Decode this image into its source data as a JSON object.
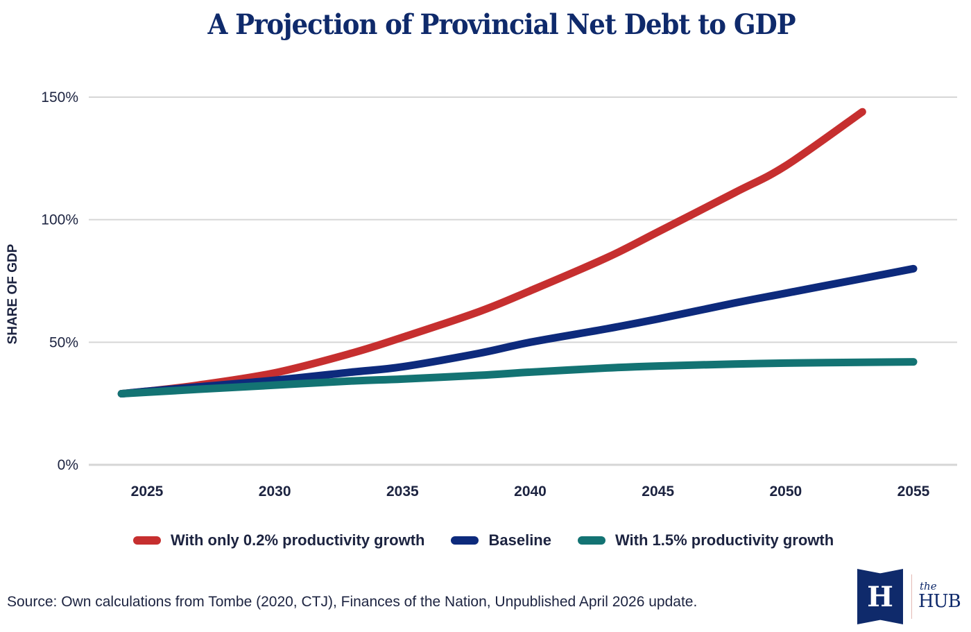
{
  "chart_data": {
    "type": "line",
    "title": "A Projection of Provincial Net Debt to GDP",
    "xlabel": "",
    "ylabel": "SHARE OF GDP",
    "ylim": [
      0,
      150
    ],
    "xlim": [
      2024,
      2055
    ],
    "yticks": [
      0,
      50,
      100,
      150
    ],
    "ytick_labels": [
      "0%",
      "50%",
      "100%",
      "150%"
    ],
    "xticks": [
      2025,
      2030,
      2035,
      2040,
      2045,
      2050,
      2055
    ],
    "xtick_labels": [
      "2025",
      "2030",
      "2035",
      "2040",
      "2045",
      "2050",
      "2055"
    ],
    "grid": "horizontal",
    "legend_position": "bottom",
    "series": [
      {
        "name": "With only 0.2% productivity growth",
        "color": "#c62f2f",
        "x": [
          2024,
          2025,
          2027,
          2030,
          2033,
          2035,
          2038,
          2040,
          2043,
          2045,
          2048,
          2050,
          2053
        ],
        "values": [
          29,
          30,
          32.5,
          37.5,
          45.5,
          52,
          62.5,
          71,
          84.5,
          95,
          111,
          122,
          144
        ]
      },
      {
        "name": "Baseline",
        "color": "#0d2a7c",
        "x": [
          2024,
          2025,
          2027,
          2030,
          2033,
          2035,
          2038,
          2040,
          2043,
          2045,
          2048,
          2050,
          2053,
          2055
        ],
        "values": [
          29,
          30,
          31.8,
          34.5,
          37.8,
          40,
          45.5,
          50,
          55.5,
          59.5,
          66,
          70,
          76,
          80
        ]
      },
      {
        "name": "With 1.5% productivity growth",
        "color": "#137373",
        "x": [
          2024,
          2025,
          2027,
          2030,
          2033,
          2035,
          2038,
          2040,
          2043,
          2045,
          2048,
          2050,
          2053,
          2055
        ],
        "values": [
          29,
          29.6,
          30.8,
          32.5,
          34.2,
          35,
          36.5,
          37.8,
          39.5,
          40.3,
          41.1,
          41.5,
          41.8,
          42
        ]
      }
    ]
  },
  "source": "Source: Own calculations from Tombe (2020, CTJ), Finances of the Nation, Unpublished April 2026 update.",
  "logo": {
    "monogram": "H",
    "small": "the",
    "large": "HUB"
  }
}
